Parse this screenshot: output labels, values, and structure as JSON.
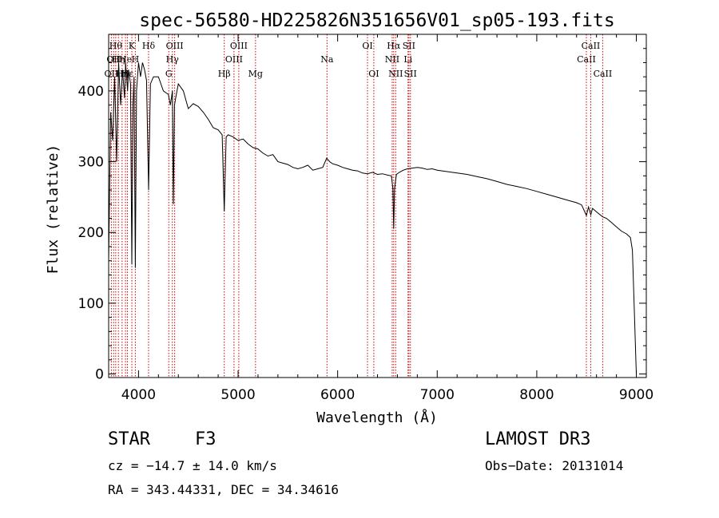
{
  "chart_data": {
    "type": "line",
    "title": "spec-56580-HD225826N351656V01_sp05-193.fits",
    "xlabel": "Wavelength (Å)",
    "ylabel": "Flux (relative)",
    "xlim": [
      3700,
      9100
    ],
    "ylim": [
      -5,
      480
    ],
    "xticks": [
      4000,
      5000,
      6000,
      7000,
      8000,
      9000
    ],
    "yticks": [
      0,
      100,
      200,
      300,
      400
    ],
    "grid": false,
    "series": [
      {
        "name": "flux",
        "x": [
          3700,
          3720,
          3740,
          3760,
          3780,
          3800,
          3820,
          3840,
          3860,
          3870,
          3880,
          3890,
          3900,
          3920,
          3933,
          3945,
          3955,
          3968,
          3980,
          4000,
          4020,
          4040,
          4060,
          4080,
          4101,
          4120,
          4150,
          4200,
          4250,
          4300,
          4320,
          4340,
          4350,
          4361,
          4380,
          4400,
          4450,
          4500,
          4550,
          4600,
          4650,
          4700,
          4750,
          4800,
          4840,
          4861,
          4880,
          4900,
          4950,
          5000,
          5050,
          5100,
          5150,
          5200,
          5250,
          5300,
          5350,
          5400,
          5450,
          5500,
          5550,
          5600,
          5650,
          5700,
          5750,
          5800,
          5850,
          5890,
          5920,
          5950,
          6000,
          6050,
          6100,
          6150,
          6200,
          6250,
          6300,
          6350,
          6400,
          6450,
          6500,
          6540,
          6555,
          6563,
          6572,
          6590,
          6620,
          6660,
          6700,
          6750,
          6800,
          6850,
          6900,
          6950,
          7000,
          7100,
          7200,
          7300,
          7400,
          7500,
          7600,
          7700,
          7800,
          7900,
          8000,
          8100,
          8200,
          8300,
          8400,
          8450,
          8498,
          8520,
          8542,
          8560,
          8600,
          8662,
          8700,
          8750,
          8800,
          8850,
          8900,
          8940,
          8960,
          8980,
          9000
        ],
        "values": [
          160,
          370,
          330,
          420,
          300,
          440,
          380,
          430,
          390,
          440,
          420,
          400,
          430,
          410,
          155,
          380,
          420,
          150,
          400,
          440,
          420,
          440,
          430,
          415,
          260,
          410,
          420,
          420,
          400,
          395,
          380,
          400,
          240,
          380,
          395,
          410,
          400,
          375,
          382,
          378,
          370,
          360,
          348,
          345,
          338,
          230,
          335,
          338,
          335,
          330,
          332,
          325,
          320,
          318,
          312,
          308,
          310,
          300,
          298,
          296,
          292,
          290,
          292,
          295,
          288,
          290,
          292,
          305,
          300,
          297,
          295,
          292,
          290,
          288,
          287,
          284,
          283,
          285,
          282,
          283,
          281,
          280,
          262,
          205,
          262,
          282,
          285,
          288,
          290,
          291,
          292,
          291,
          289,
          290,
          288,
          286,
          284,
          282,
          279,
          276,
          272,
          268,
          265,
          262,
          258,
          254,
          250,
          246,
          242,
          239,
          224,
          236,
          225,
          234,
          229,
          222,
          220,
          214,
          208,
          202,
          198,
          193,
          175,
          90,
          0
        ]
      }
    ],
    "line_markers": [
      {
        "wl": 3727,
        "label": "OII",
        "row": 3
      },
      {
        "wl": 3750,
        "label": "OII",
        "row": 2
      },
      {
        "wl": 3771,
        "label": "Hθ",
        "row": 1
      },
      {
        "wl": 3798,
        "label": "Hη",
        "row": 2
      },
      {
        "wl": 3835,
        "label": "Hη",
        "row": 3
      },
      {
        "wl": 3869,
        "label": "He",
        "row": 2
      },
      {
        "wl": 3889,
        "label": "Hε",
        "row": 3
      },
      {
        "wl": 3933,
        "label": "K",
        "row": 1
      },
      {
        "wl": 3968,
        "label": "H",
        "row": 2
      },
      {
        "wl": 4101,
        "label": "Hδ",
        "row": 1
      },
      {
        "wl": 4304,
        "label": "G",
        "row": 3
      },
      {
        "wl": 4340,
        "label": "Hγ",
        "row": 2
      },
      {
        "wl": 4363,
        "label": "OIII",
        "row": 1
      },
      {
        "wl": 4861,
        "label": "Hβ",
        "row": 3
      },
      {
        "wl": 4959,
        "label": "OIII",
        "row": 2
      },
      {
        "wl": 5007,
        "label": "OIII",
        "row": 1
      },
      {
        "wl": 5175,
        "label": "Mg",
        "row": 3
      },
      {
        "wl": 5893,
        "label": "Na",
        "row": 2
      },
      {
        "wl": 6300,
        "label": "OI",
        "row": 1
      },
      {
        "wl": 6363,
        "label": "OI",
        "row": 3
      },
      {
        "wl": 6548,
        "label": "NII",
        "row": 2
      },
      {
        "wl": 6563,
        "label": "Hα",
        "row": 1
      },
      {
        "wl": 6583,
        "label": "NII",
        "row": 3
      },
      {
        "wl": 6707,
        "label": "Li",
        "row": 2
      },
      {
        "wl": 6716,
        "label": "SII",
        "row": 1
      },
      {
        "wl": 6731,
        "label": "SII",
        "row": 3
      },
      {
        "wl": 8498,
        "label": "CaII",
        "row": 2
      },
      {
        "wl": 8542,
        "label": "CaII",
        "row": 1
      },
      {
        "wl": 8662,
        "label": "CaII",
        "row": 3
      }
    ]
  },
  "info": {
    "object_class": "STAR",
    "subclass": "F3",
    "survey": "LAMOST DR3",
    "redshift_line": "cz = −14.7 ± 14.0 km/s",
    "obs_date_line": "Obs−Date: 20131014",
    "coords_line": "RA = 343.44331, DEC =  34.34616"
  },
  "colors": {
    "spectrum": "#000000",
    "marker": "#cc0000",
    "axis": "#000000"
  }
}
